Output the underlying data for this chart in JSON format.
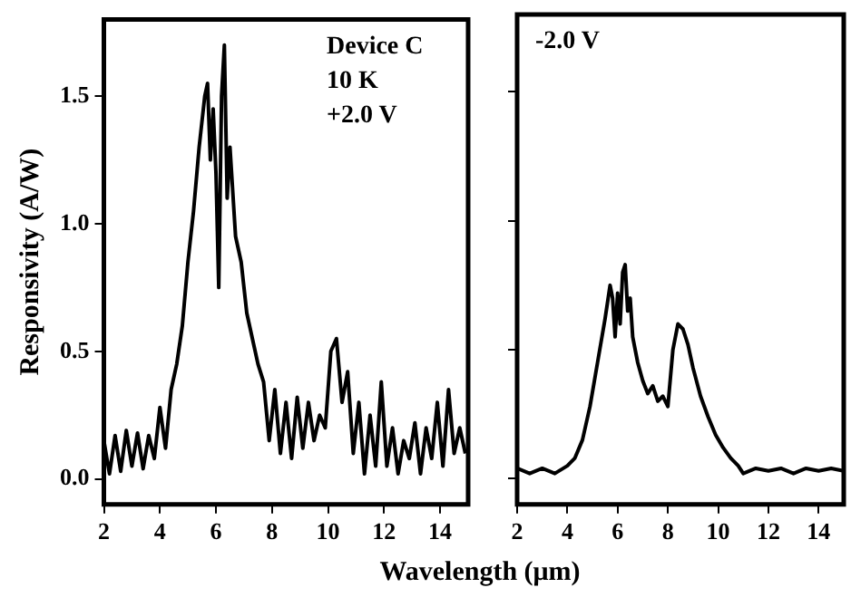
{
  "chart_data": [
    {
      "type": "line",
      "ylabel": "Responsivity (A/W)",
      "xlabel": "Wavelength (μm)",
      "annotations": [
        "Device C",
        "10 K",
        "+2.0 V"
      ],
      "xlim": [
        2,
        15
      ],
      "xticks": [
        2,
        4,
        6,
        8,
        10,
        12,
        14
      ],
      "ylim": [
        -0.1,
        1.8
      ],
      "yticks": [
        {
          "value": 0,
          "label": "0.0"
        },
        {
          "value": 0.5,
          "label": "0.5"
        },
        {
          "value": 1,
          "label": "1.0"
        },
        {
          "value": 1.5,
          "label": "1.5"
        }
      ],
      "series": [
        {
          "color": "#000000",
          "x": [
            2,
            2.2,
            2.4,
            2.6,
            2.8,
            3,
            3.2,
            3.4,
            3.6,
            3.8,
            4,
            4.2,
            4.4,
            4.6,
            4.8,
            5,
            5.2,
            5.4,
            5.6,
            5.7,
            5.8,
            5.9,
            6,
            6.1,
            6.2,
            6.3,
            6.4,
            6.5,
            6.7,
            6.9,
            7.1,
            7.3,
            7.5,
            7.7,
            7.9,
            8.1,
            8.3,
            8.5,
            8.7,
            8.9,
            9.1,
            9.3,
            9.5,
            9.7,
            9.9,
            10.1,
            10.3,
            10.5,
            10.7,
            10.9,
            11.1,
            11.3,
            11.5,
            11.7,
            11.9,
            12.1,
            12.3,
            12.5,
            12.7,
            12.9,
            13.1,
            13.3,
            13.5,
            13.7,
            13.9,
            14.1,
            14.3,
            14.5,
            14.7,
            14.9
          ],
          "values": [
            0.15,
            0.02,
            0.17,
            0.03,
            0.19,
            0.05,
            0.18,
            0.04,
            0.17,
            0.08,
            0.28,
            0.12,
            0.35,
            0.45,
            0.6,
            0.85,
            1.05,
            1.3,
            1.5,
            1.55,
            1.25,
            1.45,
            1.2,
            0.75,
            1.5,
            1.7,
            1.1,
            1.3,
            0.95,
            0.85,
            0.65,
            0.55,
            0.45,
            0.38,
            0.15,
            0.35,
            0.1,
            0.3,
            0.08,
            0.32,
            0.12,
            0.3,
            0.15,
            0.25,
            0.2,
            0.5,
            0.55,
            0.3,
            0.42,
            0.1,
            0.3,
            0.02,
            0.25,
            0.05,
            0.38,
            0.05,
            0.2,
            0.02,
            0.15,
            0.08,
            0.22,
            0.02,
            0.2,
            0.08,
            0.3,
            0.05,
            0.35,
            0.1,
            0.2,
            0.1
          ]
        }
      ]
    },
    {
      "type": "line",
      "tick_labels": "x",
      "annotations": [
        "-2.0 V"
      ],
      "xlim": [
        2,
        15
      ],
      "xticks": [
        2,
        4,
        6,
        8,
        10,
        12,
        14
      ],
      "ylim": [
        -0.1,
        1.8
      ],
      "yticks": [
        {
          "value": 0,
          "label": null
        },
        {
          "value": 0.5,
          "label": null
        },
        {
          "value": 1,
          "label": null
        },
        {
          "value": 1.5,
          "label": null
        }
      ],
      "series": [
        {
          "color": "#000000",
          "x": [
            2,
            2.5,
            3,
            3.5,
            4,
            4.3,
            4.6,
            4.9,
            5.2,
            5.5,
            5.7,
            5.8,
            5.9,
            6,
            6.1,
            6.2,
            6.3,
            6.4,
            6.5,
            6.6,
            6.8,
            7,
            7.2,
            7.4,
            7.6,
            7.8,
            8,
            8.2,
            8.4,
            8.6,
            8.8,
            9,
            9.3,
            9.6,
            9.9,
            10.2,
            10.5,
            10.8,
            11,
            11.5,
            12,
            12.5,
            13,
            13.5,
            14,
            14.5,
            15
          ],
          "values": [
            0.04,
            0.02,
            0.04,
            0.02,
            0.05,
            0.08,
            0.15,
            0.28,
            0.45,
            0.62,
            0.75,
            0.7,
            0.55,
            0.72,
            0.6,
            0.8,
            0.83,
            0.65,
            0.7,
            0.55,
            0.45,
            0.38,
            0.33,
            0.36,
            0.3,
            0.32,
            0.28,
            0.5,
            0.6,
            0.58,
            0.52,
            0.43,
            0.32,
            0.24,
            0.17,
            0.12,
            0.08,
            0.05,
            0.02,
            0.04,
            0.03,
            0.04,
            0.02,
            0.04,
            0.03,
            0.04,
            0.03
          ]
        }
      ]
    }
  ]
}
